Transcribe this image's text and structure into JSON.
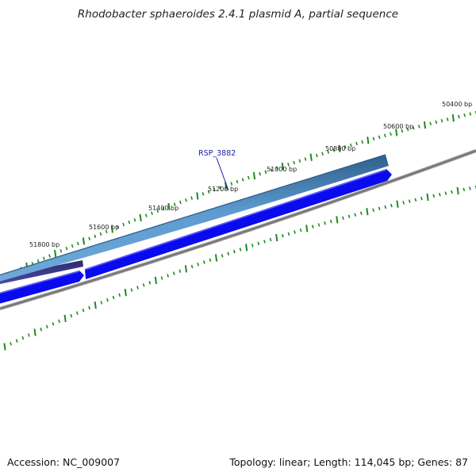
{
  "title": "Rhodobacter sphaeroides 2.4.1 plasmid A, partial sequence",
  "footer": {
    "accession": "Accession: NC_009007",
    "stats": "Topology: linear; Length: 114,045 bp; Genes: 87"
  },
  "gene_label": "RSP_3882",
  "tick_labels": [
    "50400 bp",
    "50600 bp",
    "50800 bp",
    "51000 bp",
    "51200 bp",
    "51400 bp",
    "51600 bp",
    "51800 bp"
  ],
  "colors": {
    "tick": "#1f8a1f",
    "backbone": "#7a7a7a",
    "gene_reverse": "#0a0aee",
    "gene_top": "#4a86b8",
    "gene_top_dark": "#3a4f8f",
    "label": "#1a1aa0"
  }
}
